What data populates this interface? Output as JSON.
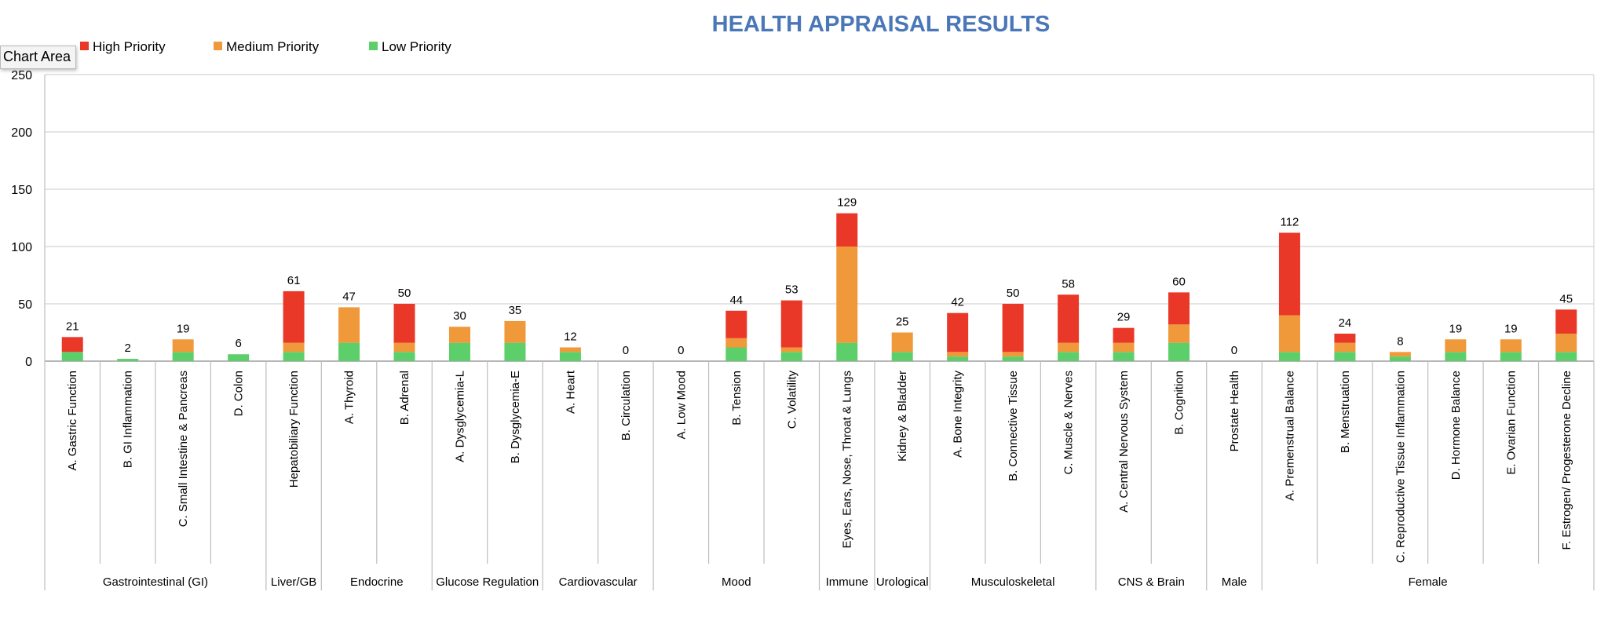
{
  "chart_data": {
    "type": "bar",
    "stacked": true,
    "title": "HEALTH APPRAISAL RESULTS",
    "title_color": "#4a77b8",
    "ylim": [
      0,
      250
    ],
    "yticks": [
      0,
      50,
      100,
      150,
      200,
      250
    ],
    "legend_position": "top-left",
    "series": [
      {
        "name": "Low Priority",
        "color": "#5ccf6a",
        "values": [
          8,
          2,
          8,
          6,
          8,
          16,
          8,
          16,
          16,
          8,
          0,
          0,
          12,
          8,
          16,
          8,
          4,
          4,
          8,
          8,
          16,
          0,
          8,
          8,
          4,
          8,
          8,
          8
        ]
      },
      {
        "name": "Medium Priority",
        "color": "#f0993a",
        "values": [
          0,
          0,
          11,
          0,
          8,
          31,
          8,
          14,
          19,
          4,
          0,
          0,
          8,
          4,
          84,
          17,
          4,
          4,
          8,
          8,
          16,
          0,
          32,
          8,
          4,
          11,
          11,
          16
        ]
      },
      {
        "name": "High Priority",
        "color": "#e93828",
        "values": [
          13,
          0,
          0,
          0,
          45,
          0,
          34,
          0,
          0,
          0,
          0,
          0,
          24,
          41,
          29,
          0,
          34,
          42,
          42,
          13,
          28,
          0,
          72,
          8,
          0,
          0,
          0,
          21
        ]
      }
    ],
    "totals": [
      21,
      2,
      19,
      6,
      61,
      47,
      50,
      30,
      35,
      12,
      0,
      0,
      44,
      53,
      129,
      25,
      42,
      50,
      58,
      29,
      60,
      0,
      112,
      24,
      8,
      19,
      19,
      45
    ],
    "categories": [
      "A. Gastric Function",
      "B. GI Inflammation",
      "C. Small Intestine & Pancreas",
      "D. Colon",
      "Hepatobiliary Function",
      "A. Thyroid",
      "B. Adrenal",
      "A. Dysglycemia-L",
      "B. Dysglycemia-E",
      "A. Heart",
      "B. Circulation",
      "A. Low Mood",
      "B. Tension",
      "C. Volatility",
      "Eyes, Ears, Nose, Throat & Lungs",
      "Kidney & Bladder",
      "A. Bone Integrity",
      "B. Connective Tissue",
      "C. Muscle & Nerves",
      "A. Central Nervous System",
      "B. Cognition",
      "Prostate Health",
      "A. Premenstrual Balance",
      "B. Menstruation",
      "C. Reproductive Tissue Inflammation",
      "D. Hormone Balance",
      "E. Ovarian Function",
      "F. Estrogen/ Progesterone Decline"
    ],
    "groups": [
      {
        "label": "Gastrointestinal (GI)",
        "start": 0,
        "end": 3
      },
      {
        "label": "Liver/GB",
        "start": 4,
        "end": 4
      },
      {
        "label": "Endocrine",
        "start": 5,
        "end": 6
      },
      {
        "label": "Glucose Regulation",
        "start": 7,
        "end": 8
      },
      {
        "label": "Cardiovascular",
        "start": 9,
        "end": 10
      },
      {
        "label": "Mood",
        "start": 11,
        "end": 13
      },
      {
        "label": "Immune",
        "start": 14,
        "end": 14
      },
      {
        "label": "Urological",
        "start": 15,
        "end": 15
      },
      {
        "label": "Musculoskeletal",
        "start": 16,
        "end": 18
      },
      {
        "label": "CNS & Brain",
        "start": 19,
        "end": 20
      },
      {
        "label": "Male",
        "start": 21,
        "end": 21
      },
      {
        "label": "Female",
        "start": 22,
        "end": 27
      }
    ]
  },
  "tooltip": {
    "label": "Chart Area"
  }
}
